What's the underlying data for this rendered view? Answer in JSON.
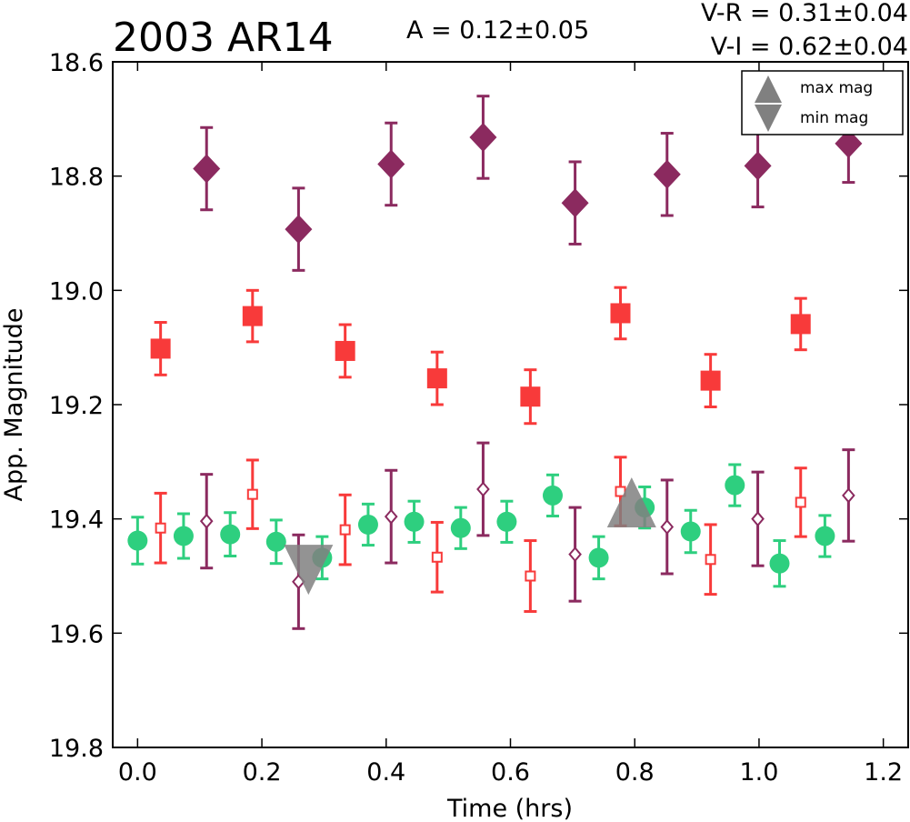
{
  "chart_data": {
    "type": "scatter",
    "title": "2003 AR14",
    "amplitude_label": "A  = 0.12±0.05",
    "color_labels": [
      "V-R = 0.31±0.04",
      "V-I  = 0.62±0.04"
    ],
    "xlabel": "Time (hrs)",
    "ylabel": "App. Magnitude",
    "xlim": [
      -0.04,
      1.24
    ],
    "ylim": [
      18.6,
      19.8
    ],
    "y_inverted": true,
    "xticks": [
      "0.0",
      "0.2",
      "0.4",
      "0.6",
      "0.8",
      "1.0",
      "1.2"
    ],
    "yticks": [
      "18.6",
      "18.8",
      "19.0",
      "19.2",
      "19.4",
      "19.6",
      "19.8"
    ],
    "grid": false,
    "legend_position": "top-right",
    "legend": [
      {
        "label": "max mag",
        "marker": "triangle-up",
        "color": "#808080"
      },
      {
        "label": "min mag",
        "marker": "triangle-down",
        "color": "#808080"
      }
    ],
    "series": [
      {
        "marker": "diamond-filled",
        "color": "#8b2a5f",
        "points": [
          [
            0.111,
            18.787,
            0.072
          ],
          [
            0.259,
            18.893,
            0.072
          ],
          [
            0.408,
            18.779,
            0.072
          ],
          [
            0.556,
            18.732,
            0.072
          ],
          [
            0.704,
            18.847,
            0.072
          ],
          [
            0.852,
            18.797,
            0.072
          ],
          [
            0.998,
            18.782,
            0.072
          ],
          [
            1.144,
            18.743,
            0.068
          ]
        ]
      },
      {
        "marker": "square-filled",
        "color": "#f83a3a",
        "points": [
          [
            0.037,
            19.102,
            0.046
          ],
          [
            0.185,
            19.045,
            0.045
          ],
          [
            0.334,
            19.106,
            0.046
          ],
          [
            0.482,
            19.154,
            0.046
          ],
          [
            0.632,
            19.186,
            0.047
          ],
          [
            0.777,
            19.04,
            0.045
          ],
          [
            0.922,
            19.158,
            0.046
          ],
          [
            1.067,
            19.059,
            0.045
          ]
        ]
      },
      {
        "marker": "circle",
        "color": "#2ecf7f",
        "points": [
          [
            0.0,
            19.438,
            0.041
          ],
          [
            0.074,
            19.43,
            0.039
          ],
          [
            0.149,
            19.427,
            0.038
          ],
          [
            0.223,
            19.44,
            0.038
          ],
          [
            0.297,
            19.468,
            0.037
          ],
          [
            0.371,
            19.41,
            0.036
          ],
          [
            0.445,
            19.405,
            0.036
          ],
          [
            0.52,
            19.416,
            0.036
          ],
          [
            0.594,
            19.405,
            0.036
          ],
          [
            0.668,
            19.359,
            0.036
          ],
          [
            0.742,
            19.468,
            0.037
          ],
          [
            0.816,
            19.38,
            0.036
          ],
          [
            0.89,
            19.422,
            0.037
          ],
          [
            0.961,
            19.341,
            0.036
          ],
          [
            1.033,
            19.478,
            0.04
          ],
          [
            1.106,
            19.43,
            0.036
          ]
        ]
      },
      {
        "marker": "square-open",
        "color": "#f83a3a",
        "points": [
          [
            0.037,
            19.416,
            0.061
          ],
          [
            0.185,
            19.357,
            0.06
          ],
          [
            0.334,
            19.419,
            0.061
          ],
          [
            0.482,
            19.467,
            0.061
          ],
          [
            0.632,
            19.5,
            0.062
          ],
          [
            0.777,
            19.352,
            0.06
          ],
          [
            0.922,
            19.471,
            0.061
          ],
          [
            1.067,
            19.371,
            0.06
          ]
        ]
      },
      {
        "marker": "diamond-open",
        "color": "#8b2a5f",
        "points": [
          [
            0.111,
            19.404,
            0.082
          ],
          [
            0.259,
            19.51,
            0.082
          ],
          [
            0.408,
            19.396,
            0.081
          ],
          [
            0.556,
            19.348,
            0.081
          ],
          [
            0.704,
            19.462,
            0.082
          ],
          [
            0.852,
            19.414,
            0.082
          ],
          [
            0.998,
            19.4,
            0.082
          ],
          [
            1.144,
            19.359,
            0.08
          ]
        ]
      }
    ],
    "extrema": [
      {
        "kind": "min mag",
        "marker": "triangle-down",
        "color": "#808080",
        "x": 0.275,
        "y": 19.485
      },
      {
        "kind": "max mag",
        "marker": "triangle-up",
        "color": "#808080",
        "x": 0.795,
        "y": 19.375
      }
    ]
  }
}
